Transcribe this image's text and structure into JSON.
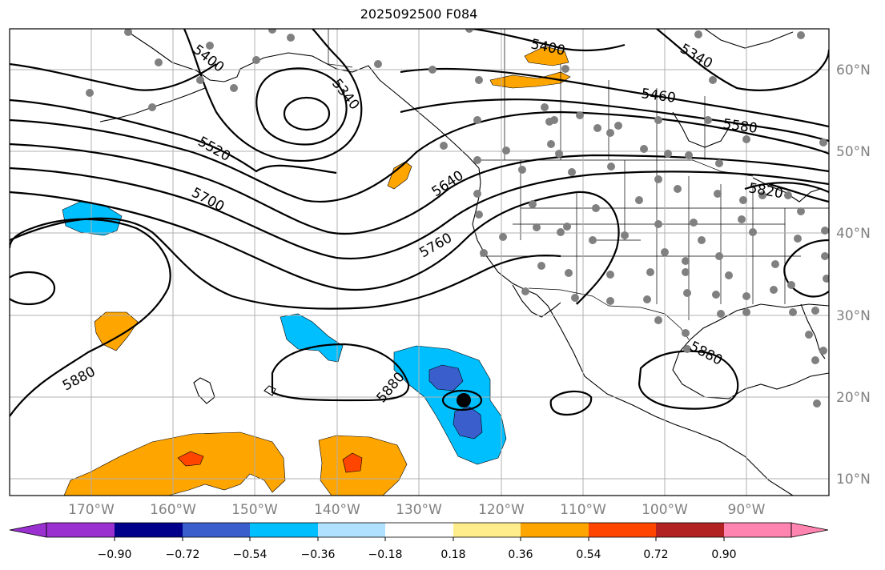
{
  "title": "2025092500 F084",
  "map": {
    "lat_labels": [
      "60°N",
      "50°N",
      "40°N",
      "30°N",
      "20°N",
      "10°N"
    ],
    "lon_labels": [
      "170°W",
      "160°W",
      "150°W",
      "140°W",
      "130°W",
      "120°W",
      "110°W",
      "100°W",
      "90°W"
    ],
    "contour_labels": [
      "5400",
      "5340",
      "5400",
      "5340",
      "5460",
      "5580",
      "5520",
      "5700",
      "5640",
      "5760",
      "5820",
      "5880",
      "5880",
      "5880"
    ],
    "colors": {
      "contour": "#000000",
      "station_dot": "#808080",
      "gridline": "#b0b0b0",
      "coast": "#000000"
    }
  },
  "colorbar": {
    "tick_labels": [
      "−0.90",
      "−0.72",
      "−0.54",
      "−0.36",
      "−0.18",
      "0.18",
      "0.36",
      "0.54",
      "0.72",
      "0.90"
    ],
    "colors": [
      "#9b30d0",
      "#00008b",
      "#3a5fcd",
      "#00bfff",
      "#b0e2ff",
      "#ffffff",
      "#ffec8b",
      "#ffa500",
      "#ff4500",
      "#b22222",
      "#ff85b0"
    ]
  }
}
